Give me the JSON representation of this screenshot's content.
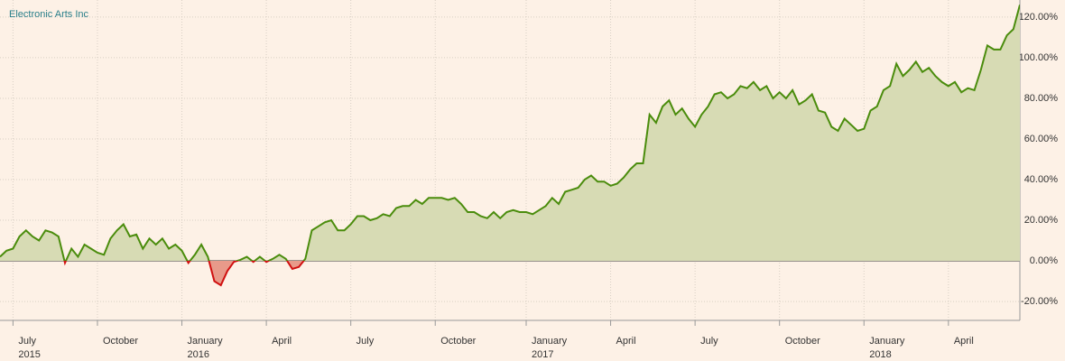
{
  "chart_data": {
    "type": "area",
    "title": "Electronic Arts Inc",
    "categories": [
      null,
      null,
      "July\n2015",
      null,
      null,
      null,
      null,
      null,
      null,
      null,
      null,
      null,
      null,
      null,
      null,
      "October",
      null,
      null,
      null,
      null,
      null,
      null,
      null,
      null,
      null,
      null,
      null,
      null,
      "January\n2016",
      null,
      null,
      null,
      null,
      null,
      null,
      null,
      null,
      null,
      null,
      null,
      null,
      "April",
      null,
      null,
      null,
      null,
      null,
      null,
      null,
      null,
      null,
      null,
      null,
      null,
      "July",
      null,
      null,
      null,
      null,
      null,
      null,
      null,
      null,
      null,
      null,
      null,
      null,
      "October",
      null,
      null,
      null,
      null,
      null,
      null,
      null,
      null,
      null,
      null,
      null,
      null,
      null,
      "January\n2017",
      null,
      null,
      null,
      null,
      null,
      null,
      null,
      null,
      null,
      null,
      null,
      null,
      "April",
      null,
      null,
      null,
      null,
      null,
      null,
      null,
      null,
      null,
      null,
      null,
      null,
      "July",
      null,
      null,
      null,
      null,
      null,
      null,
      null,
      null,
      null,
      null,
      null,
      null,
      "October",
      null,
      null,
      null,
      null,
      null,
      null,
      null,
      null,
      null,
      null,
      null,
      null,
      "January\n2018",
      null,
      null,
      null,
      null,
      null,
      null,
      null,
      null,
      null,
      null,
      null,
      null,
      "April",
      null,
      null,
      null,
      null,
      null,
      null,
      null,
      null,
      null,
      null,
      null
    ],
    "values": [
      2,
      5,
      6,
      12,
      15,
      12,
      10,
      15,
      14,
      12,
      -1,
      6,
      2,
      8,
      6,
      4,
      3,
      11,
      15,
      18,
      12,
      13,
      6,
      11,
      8,
      11,
      6,
      8,
      5,
      -1,
      3,
      8,
      2,
      -10,
      -12,
      -5,
      -0.5,
      0.5,
      2,
      -0.5,
      2,
      -0.5,
      1,
      3,
      1,
      -4,
      -3,
      1,
      15,
      17,
      19,
      20,
      15,
      15,
      18,
      22,
      22,
      20,
      21,
      23,
      22,
      26,
      27,
      27,
      30,
      28,
      31,
      31,
      31,
      30,
      31,
      28,
      24,
      24,
      22,
      21,
      24,
      21,
      24,
      25,
      24,
      24,
      23,
      25,
      27,
      31,
      28,
      34,
      35,
      36,
      40,
      42,
      39,
      39,
      37,
      38,
      41,
      45,
      48,
      48,
      72,
      68,
      76,
      79,
      72,
      75,
      70,
      66,
      72,
      76,
      82,
      83,
      80,
      82,
      86,
      85,
      88,
      84,
      86,
      80,
      83,
      80,
      84,
      77,
      79,
      82,
      74,
      73,
      66,
      64,
      70,
      67,
      64,
      65,
      74,
      76,
      84,
      86,
      97,
      91,
      94,
      98,
      93,
      95,
      91,
      88,
      86,
      88,
      83,
      85,
      84,
      94,
      106,
      104,
      104,
      111,
      114,
      126
    ],
    "positive_color": "#4a8c0c",
    "negative_color": "#d01010",
    "ylim": [
      -29.3,
      128.4
    ],
    "yticks": [
      {
        "value": -20,
        "label": "-20.00%"
      },
      {
        "value": 0,
        "label": "0.00%"
      },
      {
        "value": 20,
        "label": "20.00%"
      },
      {
        "value": 40,
        "label": "40.00%"
      },
      {
        "value": 60,
        "label": "60.00%"
      },
      {
        "value": 80,
        "label": "80.00%"
      },
      {
        "value": 100,
        "label": "100.00%"
      },
      {
        "value": 120,
        "label": "120.00%"
      }
    ],
    "grid": true
  }
}
